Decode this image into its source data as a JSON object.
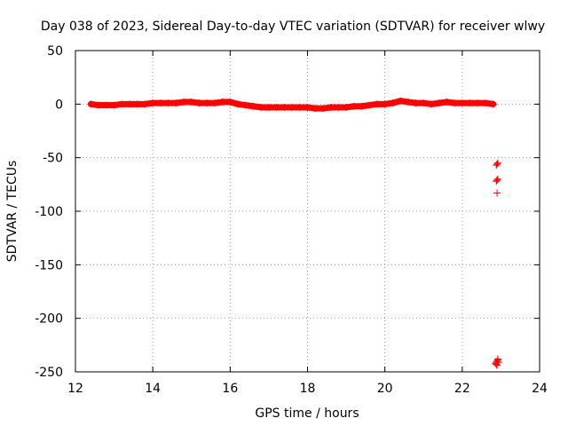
{
  "chart_data": {
    "type": "scatter",
    "title": "Day 038 of 2023, Sidereal Day-to-day VTEC variation (SDTVAR) for receiver wlwy",
    "xlabel": "GPS time / hours",
    "ylabel": "SDTVAR / TECUs",
    "xlim": [
      12,
      24
    ],
    "ylim": [
      -250,
      50
    ],
    "xticks": [
      12,
      14,
      16,
      18,
      20,
      22,
      24
    ],
    "yticks": [
      50,
      0,
      -50,
      -100,
      -150,
      -200,
      -250
    ],
    "grid": true,
    "marker": "+",
    "color": "#ff0000",
    "series": [
      {
        "name": "SDTVAR",
        "x": [
          12.4,
          12.6,
          12.8,
          13.0,
          13.2,
          13.4,
          13.6,
          13.8,
          14.0,
          14.2,
          14.4,
          14.6,
          14.8,
          15.0,
          15.2,
          15.4,
          15.6,
          15.8,
          16.0,
          16.2,
          16.4,
          16.6,
          16.8,
          17.0,
          17.2,
          17.4,
          17.6,
          17.8,
          18.0,
          18.2,
          18.4,
          18.6,
          18.8,
          19.0,
          19.2,
          19.4,
          19.6,
          19.8,
          20.0,
          20.2,
          20.4,
          20.6,
          20.8,
          21.0,
          21.2,
          21.4,
          21.6,
          21.8,
          22.0,
          22.2,
          22.4,
          22.6,
          22.8,
          22.88,
          22.9,
          22.92,
          22.88,
          22.9,
          22.92,
          22.9,
          22.86,
          22.88,
          22.9,
          22.92,
          22.94,
          22.88,
          22.9,
          22.92
        ],
        "y": [
          0,
          -1,
          -1,
          -1,
          0,
          0,
          0,
          0,
          1,
          1,
          1,
          1,
          2,
          2,
          1,
          1,
          1,
          2,
          2,
          0,
          -1,
          -2,
          -3,
          -3,
          -3,
          -3,
          -3,
          -3,
          -3,
          -4,
          -4,
          -3,
          -3,
          -3,
          -2,
          -2,
          -1,
          0,
          0,
          1,
          3,
          2,
          1,
          1,
          0,
          1,
          2,
          1,
          1,
          1,
          1,
          1,
          0,
          -57,
          -56,
          -55,
          -72,
          -71,
          -70,
          -83,
          -242,
          -241,
          -240,
          -239,
          -241,
          -243,
          -244,
          -238
        ]
      }
    ]
  }
}
